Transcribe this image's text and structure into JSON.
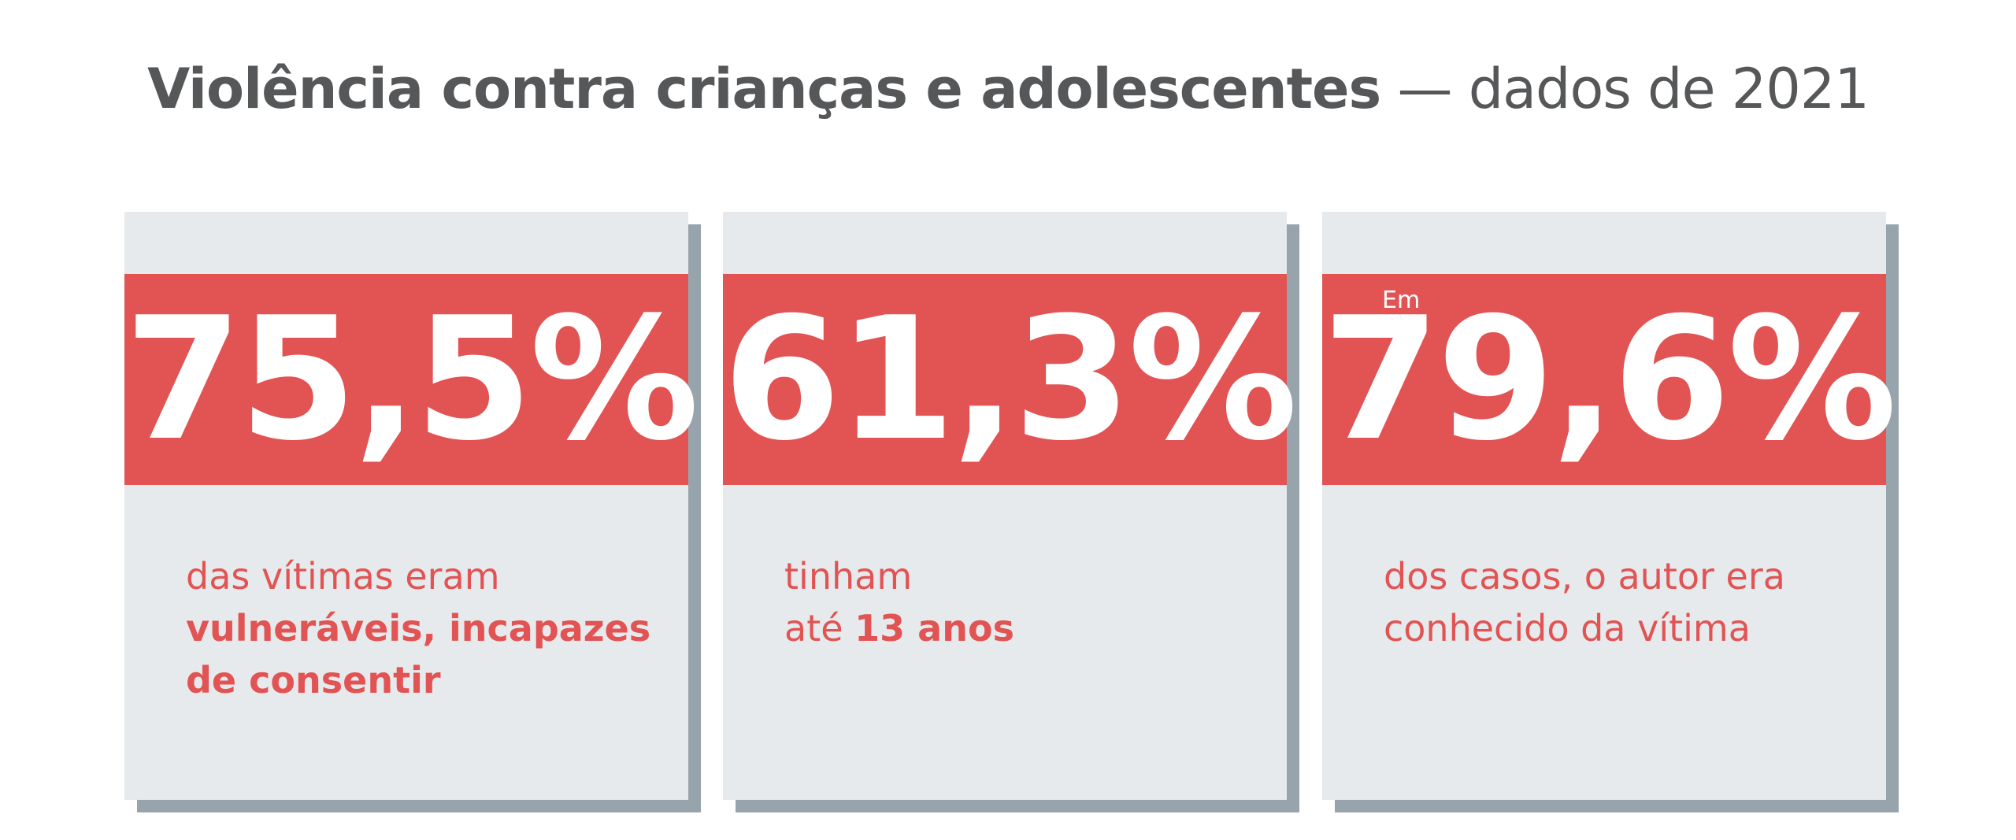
{
  "title": {
    "bold": "Violência contra crianças e adolescentes",
    "light": "— dados de 2021"
  },
  "colors": {
    "accent": "#e25353",
    "card": "#e6eaec",
    "shadow": "#97a4ac",
    "title": "#555759"
  },
  "cards": [
    {
      "prefix": "",
      "value": "75,5%",
      "line1": "das vítimas eram",
      "line2_bold": "vulneráveis, incapazes",
      "line3_bold": "de consentir"
    },
    {
      "prefix": "",
      "value": "61,3%",
      "line1": "tinham",
      "line2": "até ",
      "line2_bold": "13 anos"
    },
    {
      "prefix": "Em",
      "value": "79,6%",
      "line1": "dos casos, o autor era",
      "line2": "conhecido da vítima"
    }
  ]
}
